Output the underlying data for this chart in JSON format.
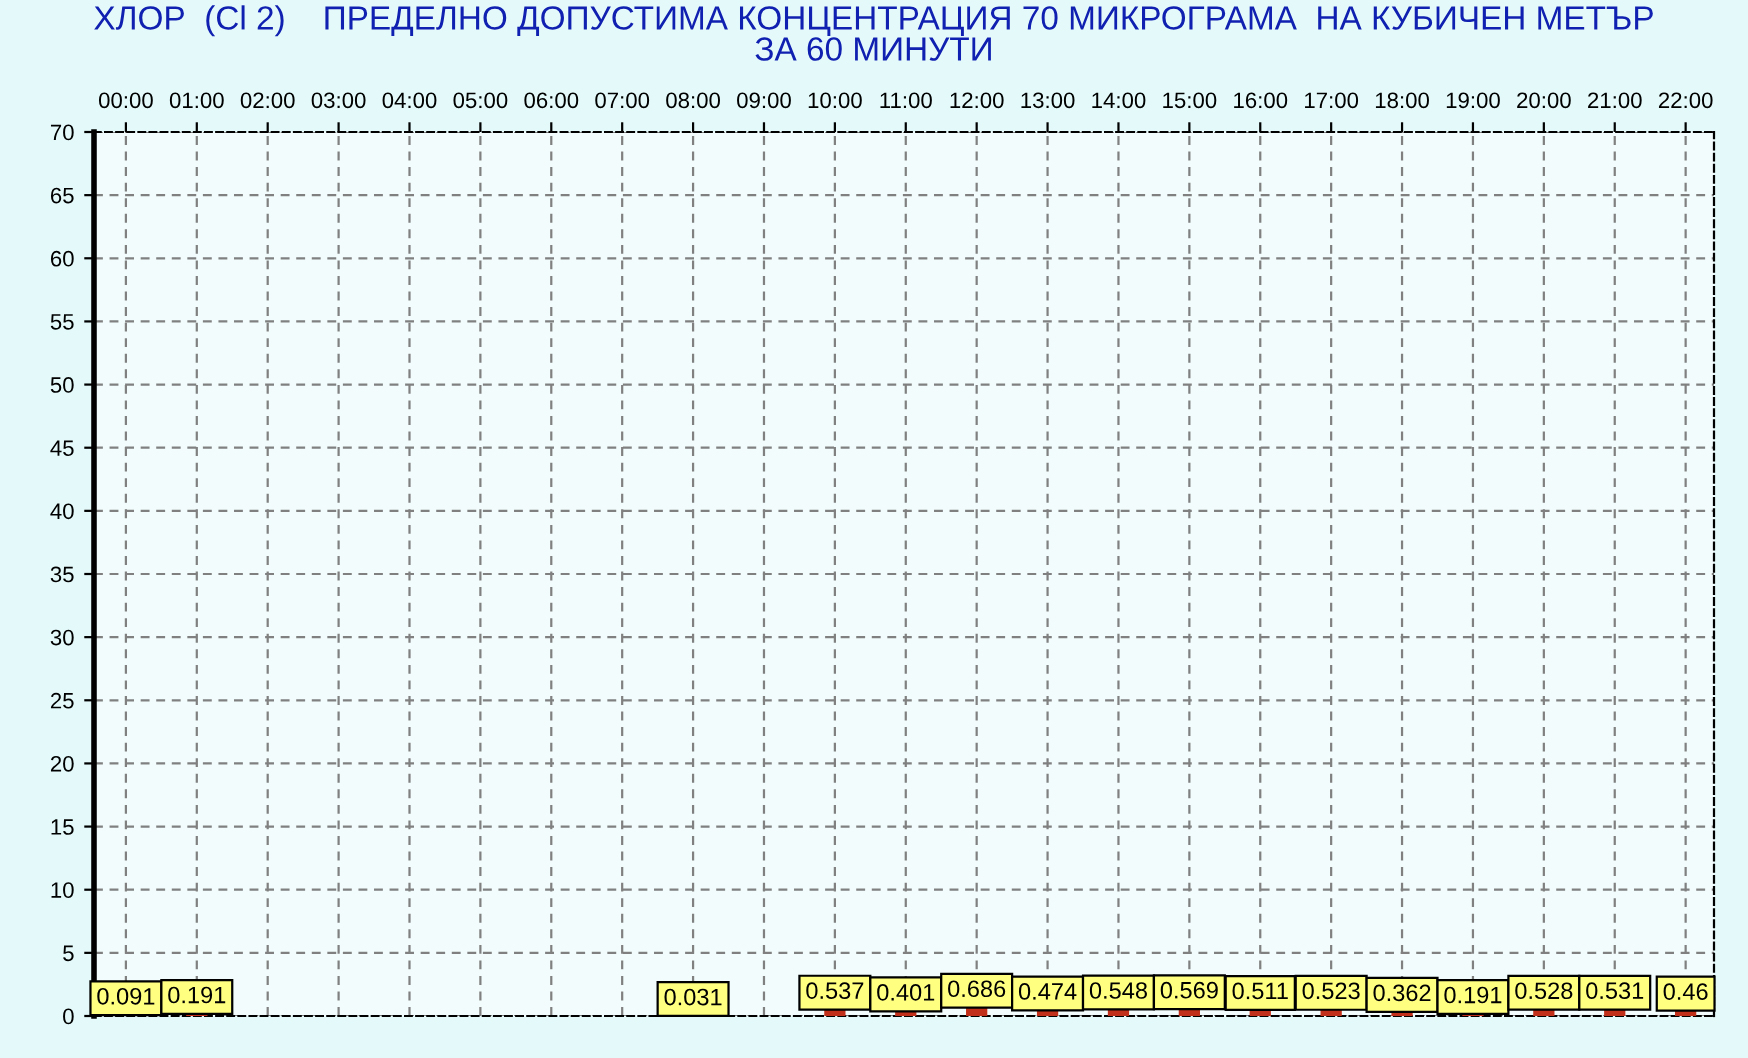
{
  "chart_data": {
    "type": "bar",
    "title": "ХЛОР  (Cl 2)    ПРЕДЕЛНО ДОПУСТИМА КОНЦЕНТРАЦИЯ 70 МИКРОГРАМА  НА КУБИЧЕН МЕТЪР\nЗА 60 МИНУТИ",
    "categories": [
      "00:00",
      "01:00",
      "02:00",
      "03:00",
      "04:00",
      "05:00",
      "06:00",
      "07:00",
      "08:00",
      "09:00",
      "10:00",
      "11:00",
      "12:00",
      "13:00",
      "14:00",
      "15:00",
      "16:00",
      "17:00",
      "18:00",
      "19:00",
      "20:00",
      "21:00",
      "22:00"
    ],
    "values": [
      0.091,
      0.191,
      null,
      null,
      null,
      null,
      null,
      null,
      0.031,
      null,
      0.537,
      0.401,
      0.686,
      0.474,
      0.548,
      0.569,
      0.511,
      0.523,
      0.362,
      0.191,
      0.528,
      0.531,
      0.46
    ],
    "color": "#c0301a",
    "ylim": [
      0,
      70
    ],
    "yticks": [
      0,
      5,
      10,
      15,
      20,
      25,
      30,
      35,
      40,
      45,
      50,
      55,
      60,
      65,
      70
    ],
    "grid": true,
    "data_labels": true,
    "legend": false
  }
}
